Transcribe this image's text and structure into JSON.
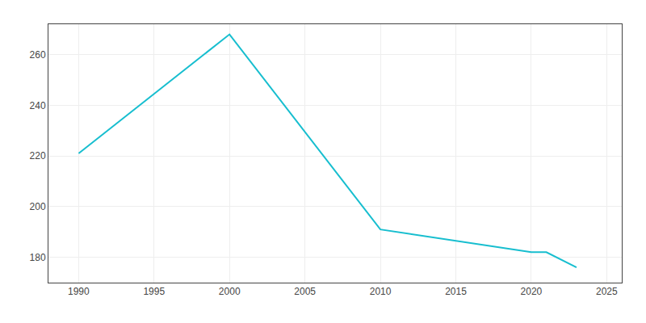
{
  "chart_data": {
    "type": "line",
    "x": [
      1990,
      2000,
      2010,
      2020,
      2021,
      2023
    ],
    "values": [
      221,
      268,
      191,
      182,
      182,
      176
    ],
    "color": "#17BECF",
    "xlim": [
      1988,
      2026
    ],
    "ylim": [
      170,
      272
    ],
    "xticks": [
      1990,
      1995,
      2000,
      2005,
      2010,
      2015,
      2020,
      2025
    ],
    "yticks": [
      180,
      200,
      220,
      240,
      260
    ],
    "grid": true
  }
}
